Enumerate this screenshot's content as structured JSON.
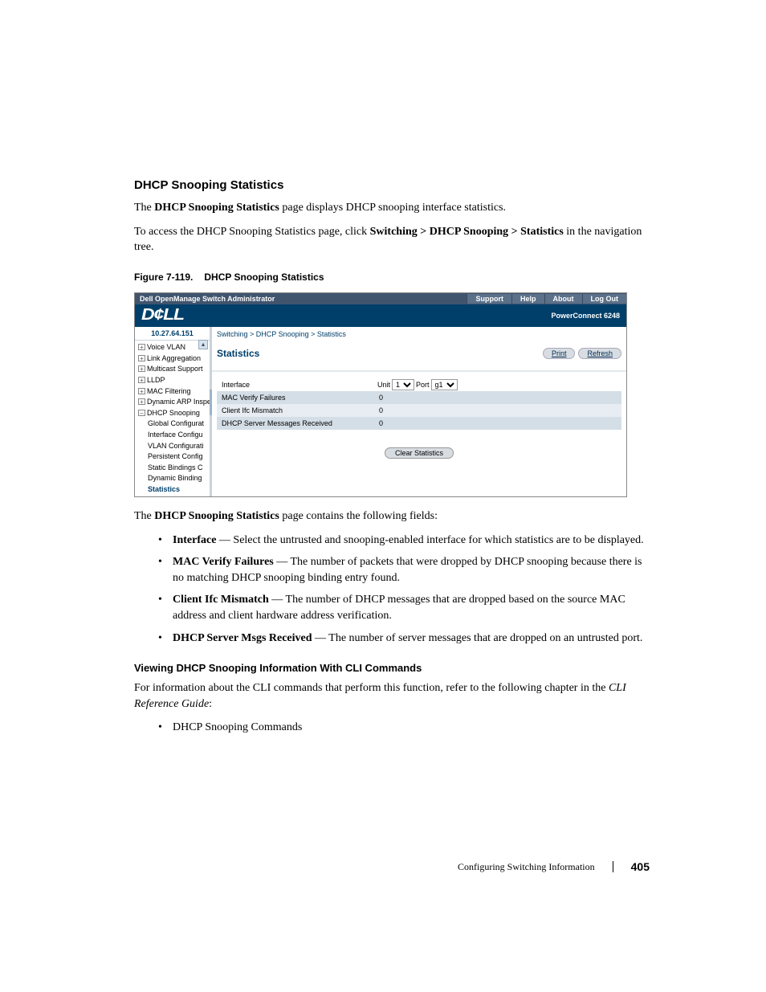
{
  "section_title": "DHCP Snooping Statistics",
  "intro_para_before": "The ",
  "intro_para_bold": "DHCP Snooping Statistics",
  "intro_para_after": " page displays DHCP snooping interface statistics.",
  "nav_para_before": "To access the DHCP Snooping Statistics page, click ",
  "nav_para_bold": "Switching > DHCP Snooping > Statistics",
  "nav_para_after": " in the navigation tree.",
  "figure_label": "Figure 7-119.",
  "figure_title": "DHCP Snooping Statistics",
  "after_fig_before": "The ",
  "after_fig_bold": "DHCP Snooping Statistics",
  "after_fig_after": " page contains the following fields:",
  "bullets": [
    {
      "term": "Interface",
      "desc": " — Select the untrusted and snooping-enabled interface for which statistics are to be displayed."
    },
    {
      "term": "MAC Verify Failures",
      "desc": " — The number of packets that were dropped by DHCP snooping because there is no matching DHCP snooping binding entry found."
    },
    {
      "term": "Client Ifc Mismatch",
      "desc": " — The number of DHCP messages that are dropped based on the source MAC address and client hardware address verification."
    },
    {
      "term": "DHCP Server Msgs Received",
      "desc": " — The number of server messages that are dropped on an untrusted port."
    }
  ],
  "cli_heading": "Viewing DHCP Snooping Information With CLI Commands",
  "cli_para_before": "For information about the CLI commands that perform this function, refer to the following chapter in the ",
  "cli_para_italic": "CLI Reference Guide",
  "cli_para_after": ":",
  "cli_bullet": "DHCP Snooping Commands",
  "footer_text": "Configuring Switching Information",
  "footer_page": "405",
  "screenshot": {
    "topbar_title": "Dell OpenManage Switch Administrator",
    "topbar_nav": [
      "Support",
      "Help",
      "About",
      "Log Out"
    ],
    "logo": "D¢LL",
    "model": "PowerConnect 6248",
    "ip": "10.27.64.151",
    "tree": [
      {
        "label": "Voice VLAN",
        "lvl": 1,
        "exp": "+"
      },
      {
        "label": "Link Aggregation",
        "lvl": 1,
        "exp": "+"
      },
      {
        "label": "Multicast Support",
        "lvl": 1,
        "exp": "+"
      },
      {
        "label": "LLDP",
        "lvl": 1,
        "exp": "+"
      },
      {
        "label": "MAC Filtering",
        "lvl": 1,
        "exp": "+"
      },
      {
        "label": "Dynamic ARP Inspe",
        "lvl": 1,
        "exp": "+"
      },
      {
        "label": "DHCP Snooping",
        "lvl": 1,
        "exp": "–"
      },
      {
        "label": "Global Configurat",
        "lvl": 2,
        "exp": ""
      },
      {
        "label": "Interface Configu",
        "lvl": 2,
        "exp": ""
      },
      {
        "label": "VLAN Configurati",
        "lvl": 2,
        "exp": ""
      },
      {
        "label": "Persistent Config",
        "lvl": 2,
        "exp": ""
      },
      {
        "label": "Static Bindings C",
        "lvl": 2,
        "exp": ""
      },
      {
        "label": "Dynamic Binding",
        "lvl": 2,
        "exp": ""
      },
      {
        "label": "Statistics",
        "lvl": 2,
        "exp": "",
        "selected": true
      }
    ],
    "breadcrumb": "Switching > DHCP Snooping > Statistics",
    "panel_title": "Statistics",
    "print_btn": "Print",
    "refresh_btn": "Refresh",
    "table": {
      "interface_label": "Interface",
      "unit_label": "Unit",
      "unit_value": "1",
      "port_label": "Port",
      "port_value": "g1",
      "rows": [
        {
          "label": "MAC Verify Failures",
          "value": "0",
          "shade": "dark"
        },
        {
          "label": "Client Ifc Mismatch",
          "value": "0",
          "shade": "light"
        },
        {
          "label": "DHCP Server Messages Received",
          "value": "0",
          "shade": "dark"
        }
      ]
    },
    "clear_btn": "Clear Statistics"
  }
}
